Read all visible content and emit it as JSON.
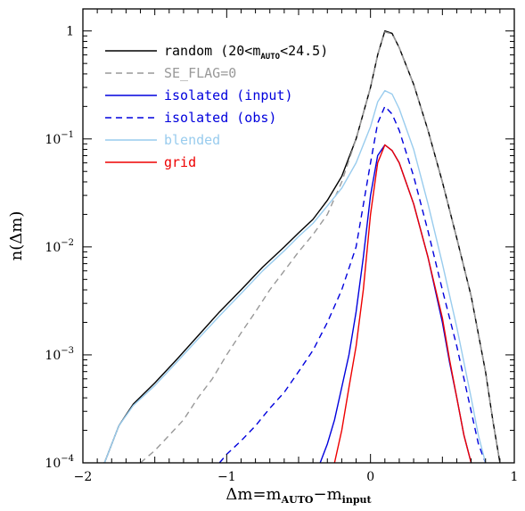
{
  "chart_data": {
    "type": "line",
    "title": "",
    "xlabel": "Δm=m",
    "xlabel_sub1": "AUTO",
    "xlabel_mid": "−m",
    "xlabel_sub2": "input",
    "ylabel": "n(Δm)",
    "x_scale": "linear",
    "y_scale": "log",
    "xlim": [
      -2,
      1
    ],
    "ylim": [
      0.0001,
      1.6
    ],
    "x_ticks": [
      -2,
      -1,
      0,
      1
    ],
    "x_tick_labels": [
      "−2",
      "−1",
      "0",
      "1"
    ],
    "y_ticks": [
      0.0001,
      0.001,
      0.01,
      0.1,
      1
    ],
    "y_tick_labels": [
      {
        "base": "10",
        "exp": "−4"
      },
      {
        "base": "10",
        "exp": "−3"
      },
      {
        "base": "10",
        "exp": "−2"
      },
      {
        "base": "10",
        "exp": "−1"
      },
      {
        "base": "1",
        "exp": ""
      }
    ],
    "grid": false,
    "legend_position": "top-left",
    "series": [
      {
        "name": "random (20<m",
        "name_sub": "AUTO",
        "name_suffix": "<24.5)",
        "color": "#000000",
        "dash": "solid",
        "x": [
          -1.85,
          -1.75,
          -1.65,
          -1.5,
          -1.35,
          -1.2,
          -1.05,
          -0.9,
          -0.75,
          -0.6,
          -0.5,
          -0.4,
          -0.3,
          -0.2,
          -0.1,
          0.0,
          0.05,
          0.1,
          0.15,
          0.2,
          0.3,
          0.4,
          0.5,
          0.6,
          0.7,
          0.8,
          0.85,
          0.9
        ],
        "y": [
          0.0001,
          0.00022,
          0.00035,
          0.00055,
          0.0009,
          0.0015,
          0.0025,
          0.004,
          0.0065,
          0.01,
          0.0135,
          0.018,
          0.027,
          0.045,
          0.1,
          0.3,
          0.6,
          1.0,
          0.95,
          0.7,
          0.32,
          0.12,
          0.04,
          0.012,
          0.0035,
          0.0007,
          0.00025,
          0.0001
        ]
      },
      {
        "name": "SE_FLAG=0",
        "color": "#999999",
        "dash": "dashed",
        "x": [
          -1.6,
          -1.5,
          -1.4,
          -1.3,
          -1.2,
          -1.1,
          -1.0,
          -0.9,
          -0.8,
          -0.7,
          -0.6,
          -0.5,
          -0.4,
          -0.3,
          -0.2,
          -0.1,
          0.0,
          0.05,
          0.1,
          0.15,
          0.2,
          0.3,
          0.4,
          0.5,
          0.6,
          0.7,
          0.8,
          0.85,
          0.9
        ],
        "y": [
          0.0001,
          0.00013,
          0.00018,
          0.00025,
          0.0004,
          0.0006,
          0.001,
          0.0016,
          0.0025,
          0.004,
          0.006,
          0.009,
          0.013,
          0.02,
          0.04,
          0.1,
          0.3,
          0.6,
          0.98,
          0.94,
          0.7,
          0.32,
          0.12,
          0.04,
          0.012,
          0.0035,
          0.0007,
          0.00025,
          0.0001
        ]
      },
      {
        "name": "isolated (input)",
        "color": "#0000dd",
        "dash": "solid",
        "x": [
          -0.35,
          -0.3,
          -0.25,
          -0.2,
          -0.15,
          -0.1,
          -0.05,
          0.0,
          0.05,
          0.1,
          0.15,
          0.2,
          0.3,
          0.4,
          0.5,
          0.55,
          0.6,
          0.65,
          0.7
        ],
        "y": [
          0.0001,
          0.00015,
          0.00025,
          0.0005,
          0.001,
          0.0025,
          0.008,
          0.03,
          0.07,
          0.088,
          0.078,
          0.06,
          0.025,
          0.008,
          0.002,
          0.00085,
          0.0004,
          0.00018,
          0.0001
        ]
      },
      {
        "name": "isolated (obs)",
        "color": "#0000dd",
        "dash": "dashed",
        "x": [
          -1.05,
          -1.0,
          -0.9,
          -0.8,
          -0.7,
          -0.6,
          -0.5,
          -0.4,
          -0.3,
          -0.2,
          -0.1,
          0.0,
          0.05,
          0.1,
          0.15,
          0.2,
          0.3,
          0.4,
          0.5,
          0.6,
          0.7,
          0.75,
          0.8
        ],
        "y": [
          0.0001,
          0.00012,
          0.00016,
          0.00022,
          0.00032,
          0.00045,
          0.0007,
          0.0011,
          0.002,
          0.004,
          0.01,
          0.06,
          0.14,
          0.2,
          0.17,
          0.12,
          0.045,
          0.014,
          0.004,
          0.0012,
          0.0003,
          0.00015,
          0.0001
        ]
      },
      {
        "name": "blended",
        "color": "#99ccee",
        "dash": "solid",
        "x": [
          -1.85,
          -1.75,
          -1.65,
          -1.5,
          -1.35,
          -1.2,
          -1.05,
          -0.9,
          -0.75,
          -0.6,
          -0.5,
          -0.4,
          -0.3,
          -0.2,
          -0.1,
          0.0,
          0.05,
          0.1,
          0.15,
          0.2,
          0.3,
          0.4,
          0.5,
          0.6,
          0.7,
          0.75,
          0.8
        ],
        "y": [
          0.0001,
          0.00022,
          0.00034,
          0.00052,
          0.00085,
          0.0014,
          0.0023,
          0.0037,
          0.006,
          0.0092,
          0.0125,
          0.0165,
          0.024,
          0.035,
          0.06,
          0.13,
          0.22,
          0.28,
          0.26,
          0.19,
          0.08,
          0.025,
          0.007,
          0.0018,
          0.0004,
          0.00018,
          0.0001
        ]
      },
      {
        "name": "grid",
        "color": "#ee0000",
        "dash": "solid",
        "x": [
          -0.25,
          -0.2,
          -0.15,
          -0.1,
          -0.05,
          0.0,
          0.05,
          0.1,
          0.15,
          0.2,
          0.3,
          0.4,
          0.5,
          0.55,
          0.6,
          0.65,
          0.7
        ],
        "y": [
          0.0001,
          0.0002,
          0.0005,
          0.0012,
          0.004,
          0.02,
          0.06,
          0.088,
          0.078,
          0.06,
          0.025,
          0.008,
          0.0022,
          0.0009,
          0.0004,
          0.00018,
          0.0001
        ]
      }
    ]
  }
}
